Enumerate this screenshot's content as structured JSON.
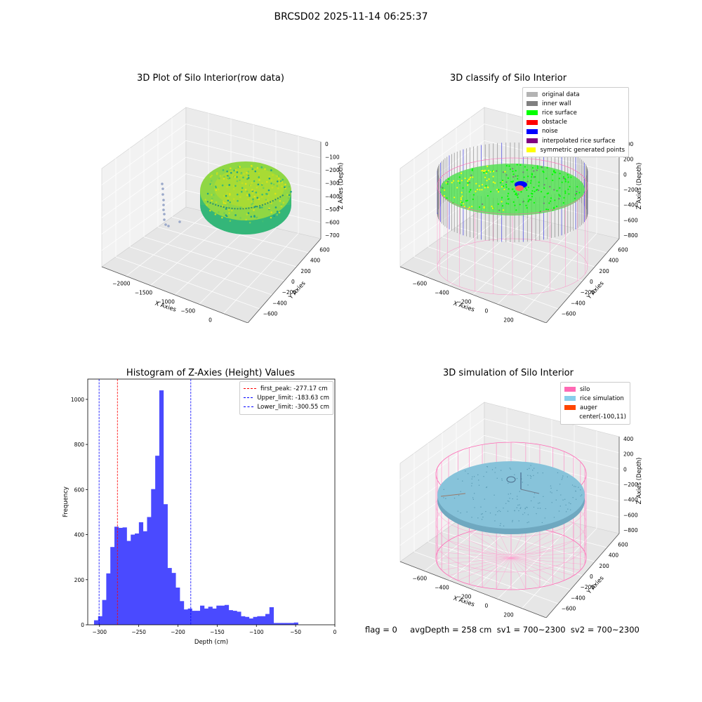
{
  "suptitle": "BRCSD02 2025-11-14 06:25:37",
  "panels": {
    "raw": {
      "title": "3D Plot of Silo Interior(row data)",
      "xlabel": "X Axies",
      "ylabel": "Y Axies",
      "zlabel": "Z Axies (Depth)",
      "xticks": [
        "−2000",
        "−1500",
        "−1000",
        "−500",
        "0",
        "500"
      ],
      "yticks": [
        "600",
        "400",
        "200",
        "0",
        "−200",
        "−400",
        "−600"
      ],
      "zticks": [
        "0",
        "−100",
        "−200",
        "−300",
        "−400",
        "−500",
        "−600",
        "−700"
      ]
    },
    "classify": {
      "title": "3D classify of Silo Interior",
      "xlabel": "X Axies",
      "ylabel": "Y Axies",
      "zlabel": "Z Axies (Depth)",
      "xticks": [
        "−600",
        "−400",
        "−200",
        "0",
        "200",
        "400"
      ],
      "yticks": [
        "600",
        "400",
        "200",
        "0",
        "−200",
        "−400",
        "−600"
      ],
      "zticks": [
        "400",
        "200",
        "0",
        "−200",
        "−400",
        "−600",
        "−800"
      ],
      "legend": [
        {
          "label": "original data",
          "color": "#b3b3b3"
        },
        {
          "label": "inner wall",
          "color": "#808080"
        },
        {
          "label": "rice surface",
          "color": "#00ff00"
        },
        {
          "label": "obstacle",
          "color": "#ff0000"
        },
        {
          "label": "noise",
          "color": "#0000ff"
        },
        {
          "label": "interpolated rice surface",
          "color": "#800080"
        },
        {
          "label": "symmetric generated points",
          "color": "#ffff00"
        }
      ]
    },
    "simulation": {
      "title": "3D simulation of Silo Interior",
      "xlabel": "X Axies",
      "ylabel": "Y Axies",
      "zlabel": "Z Axies (Depth)",
      "xticks": [
        "−600",
        "−400",
        "−200",
        "0",
        "200",
        "400"
      ],
      "yticks": [
        "600",
        "400",
        "200",
        "0",
        "−200",
        "−400",
        "−600"
      ],
      "zticks": [
        "400",
        "200",
        "0",
        "−200",
        "−400",
        "−600",
        "−800"
      ],
      "legend": [
        {
          "label": "silo",
          "color": "#ff69b4"
        },
        {
          "label": "rice simulation",
          "color": "#87ceeb"
        },
        {
          "label": "auger",
          "color": "#ff4500"
        },
        {
          "label": "center(-100,11)",
          "color": ""
        }
      ]
    }
  },
  "chart_data": {
    "type": "bar",
    "title": "Histogram of Z-Axies (Height) Values",
    "xlabel": "Depth (cm)",
    "ylabel": "Frequency",
    "xlim": [
      -315,
      0
    ],
    "ylim": [
      0,
      1090
    ],
    "xticks": [
      -300,
      -250,
      -200,
      -150,
      -100,
      -50,
      0
    ],
    "yticks": [
      0,
      200,
      400,
      600,
      800,
      1000
    ],
    "bin_start": -307.0,
    "bin_width": 5.2,
    "values": [
      20,
      38,
      110,
      228,
      345,
      435,
      430,
      432,
      372,
      400,
      405,
      455,
      415,
      478,
      602,
      750,
      1040,
      535,
      252,
      230,
      165,
      105,
      68,
      72,
      62,
      62,
      85,
      72,
      80,
      72,
      85,
      85,
      88,
      65,
      62,
      58,
      38,
      35,
      28,
      35,
      38,
      38,
      48,
      78,
      8,
      8,
      8,
      8,
      8,
      10
    ],
    "bar_color": "#4a4aff",
    "vlines": [
      {
        "label": "first_peak: -277.17 cm",
        "x": -277.17,
        "color": "#ff0000"
      },
      {
        "label": "Upper_limit: -183.63 cm",
        "x": -183.63,
        "color": "#0000ff"
      },
      {
        "label": "Lower_limit: -300.55 cm",
        "x": -300.55,
        "color": "#0000ff"
      }
    ],
    "legend_position": "upper right"
  },
  "footer": "flag = 0     avgDepth = 258 cm  sv1 = 700~2300  sv2 = 700~2300"
}
